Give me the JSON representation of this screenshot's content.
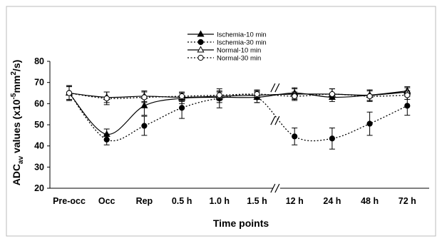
{
  "chart_data": {
    "type": "line",
    "title": "",
    "xlabel": "Time points",
    "ylabel": {
      "main": "ADC",
      "sub": "av",
      "rest": " values (x10",
      "sup1": "-5",
      "mid": "mm",
      "sup2": "2",
      "end": "/s)"
    },
    "categories": [
      "Pre-occ",
      "Occ",
      "Rep",
      "0.5 h",
      "1.0 h",
      "1.5 h",
      "12 h",
      "24 h",
      "48 h",
      "72 h"
    ],
    "axis_break_after": "1.5 h",
    "ylim": [
      20,
      80
    ],
    "yticks": [
      20,
      30,
      40,
      50,
      60,
      70,
      80
    ],
    "grid": false,
    "legend_position": "top-center",
    "series": [
      {
        "name": "Ischemia-10 min",
        "line": "solid",
        "marker": "filled-triangle",
        "values": [
          65,
          45.5,
          59,
          62.5,
          63,
          63,
          65,
          63,
          64,
          66
        ],
        "errors": [
          3.5,
          2.5,
          4.5,
          2.5,
          2.5,
          2.5,
          2.5,
          2,
          2.5,
          2
        ]
      },
      {
        "name": "Ischemia-30 min",
        "line": "dotted",
        "marker": "filled-circle",
        "values": [
          65,
          43,
          49.5,
          58,
          62.5,
          63,
          44.5,
          43.5,
          50.5,
          59
        ],
        "errors": [
          3.5,
          2.5,
          4.5,
          5,
          4.5,
          2.5,
          4,
          5,
          5.5,
          4.5
        ]
      },
      {
        "name": "Normal-10 min",
        "line": "solid",
        "marker": "open-triangle",
        "values": [
          65,
          63,
          63.5,
          63,
          63.5,
          64,
          64.5,
          64.5,
          64,
          65.5
        ],
        "errors": [
          3.5,
          2.5,
          2.5,
          2,
          2,
          2,
          2.5,
          2.5,
          2.5,
          2
        ]
      },
      {
        "name": "Normal-30 min",
        "line": "dotted",
        "marker": "open-circle",
        "values": [
          65,
          62.5,
          63,
          63.5,
          64,
          64.5,
          63.5,
          64.5,
          63.5,
          64
        ],
        "errors": [
          3,
          3,
          2.5,
          2,
          2,
          2,
          2,
          2.5,
          2.5,
          2
        ]
      }
    ],
    "colors": {
      "ink": "#000000",
      "background": "#ffffff"
    }
  }
}
